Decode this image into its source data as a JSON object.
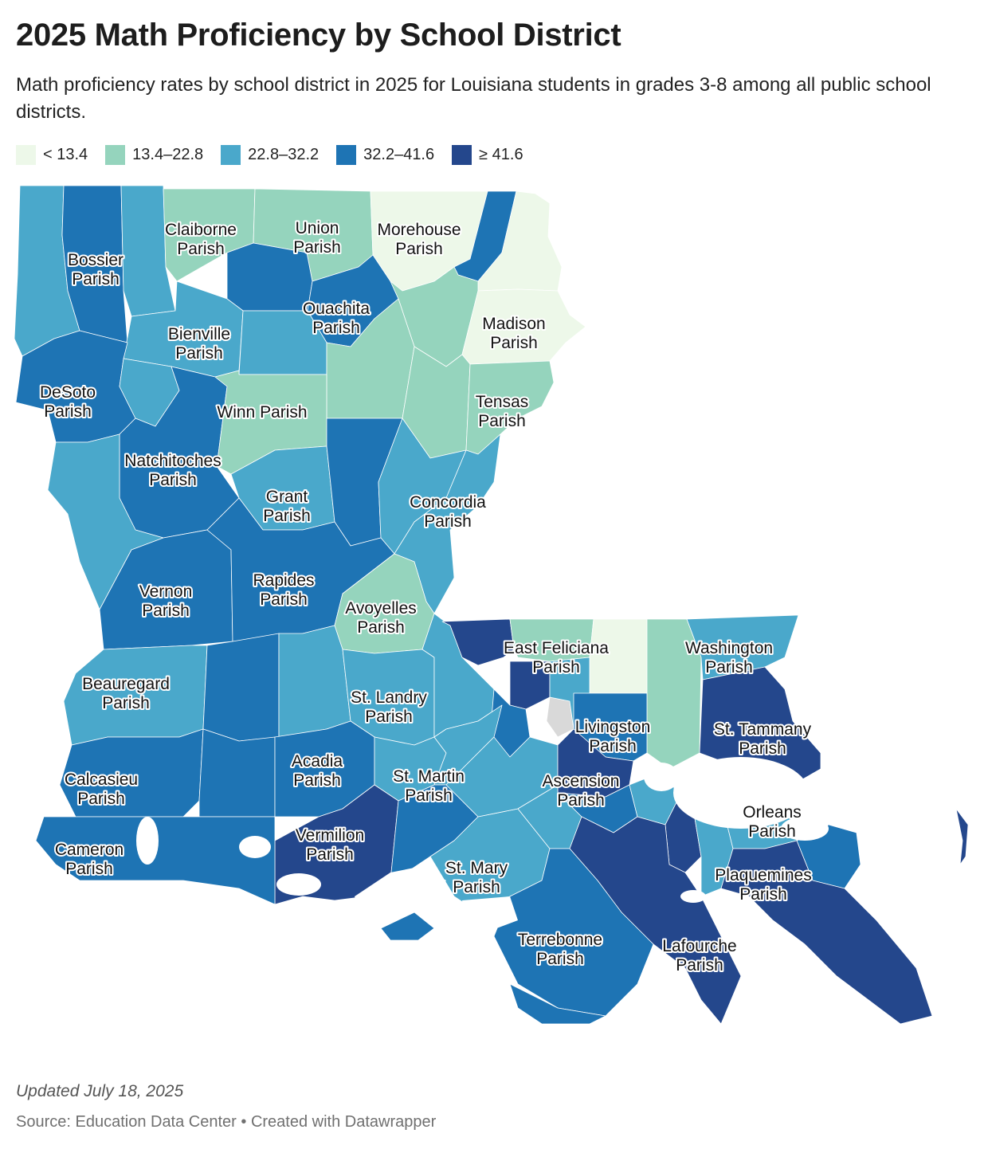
{
  "title": "2025 Math Proficiency by School District",
  "subtitle": "Math proficiency rates by school district in 2025 for Louisiana students in grades 3-8 among all public school districts.",
  "legend": [
    {
      "label": "< 13.4",
      "color": "#edf8e9"
    },
    {
      "label": "13.4–22.8",
      "color": "#95d4bd"
    },
    {
      "label": "22.8–32.2",
      "color": "#4aa8cb"
    },
    {
      "label": "32.2–41.6",
      "color": "#1e74b4"
    },
    {
      "label": "≥ 41.6",
      "color": "#24478c"
    }
  ],
  "no_data_color": "#d9d9d9",
  "parish_labels": [
    {
      "line1": "Claiborne",
      "line2": "Parish"
    },
    {
      "line1": "Union",
      "line2": "Parish"
    },
    {
      "line1": "Morehouse",
      "line2": "Parish"
    },
    {
      "line1": "Bossier",
      "line2": "Parish"
    },
    {
      "line1": "Ouachita",
      "line2": "Parish"
    },
    {
      "line1": "Madison",
      "line2": "Parish"
    },
    {
      "line1": "Bienville",
      "line2": "Parish"
    },
    {
      "line1": "DeSoto",
      "line2": "Parish"
    },
    {
      "line1": "Tensas",
      "line2": "Parish"
    },
    {
      "line1": "Winn Parish",
      "line2": ""
    },
    {
      "line1": "Natchitoches",
      "line2": "Parish"
    },
    {
      "line1": "Grant",
      "line2": "Parish"
    },
    {
      "line1": "Concordia",
      "line2": "Parish"
    },
    {
      "line1": "Rapides",
      "line2": "Parish"
    },
    {
      "line1": "Vernon",
      "line2": "Parish"
    },
    {
      "line1": "Avoyelles",
      "line2": "Parish"
    },
    {
      "line1": "East Feliciana",
      "line2": "Parish"
    },
    {
      "line1": "Washington",
      "line2": "Parish"
    },
    {
      "line1": "Beauregard",
      "line2": "Parish"
    },
    {
      "line1": "St. Landry",
      "line2": "Parish"
    },
    {
      "line1": "Livingston",
      "line2": "Parish"
    },
    {
      "line1": "St. Tammany",
      "line2": "Parish"
    },
    {
      "line1": "Acadia",
      "line2": "Parish"
    },
    {
      "line1": "Calcasieu",
      "line2": "Parish"
    },
    {
      "line1": "St. Martin",
      "line2": "Parish"
    },
    {
      "line1": "Ascension",
      "line2": "Parish"
    },
    {
      "line1": "Orleans",
      "line2": "Parish"
    },
    {
      "line1": "Vermilion",
      "line2": "Parish"
    },
    {
      "line1": "Cameron",
      "line2": "Parish"
    },
    {
      "line1": "St. Mary",
      "line2": "Parish"
    },
    {
      "line1": "Plaquemines",
      "line2": "Parish"
    },
    {
      "line1": "Terrebonne",
      "line2": "Parish"
    },
    {
      "line1": "Lafourche",
      "line2": "Parish"
    }
  ],
  "updated": "Updated July 18, 2025",
  "source": "Source: Education Data Center • Created with Datawrapper"
}
